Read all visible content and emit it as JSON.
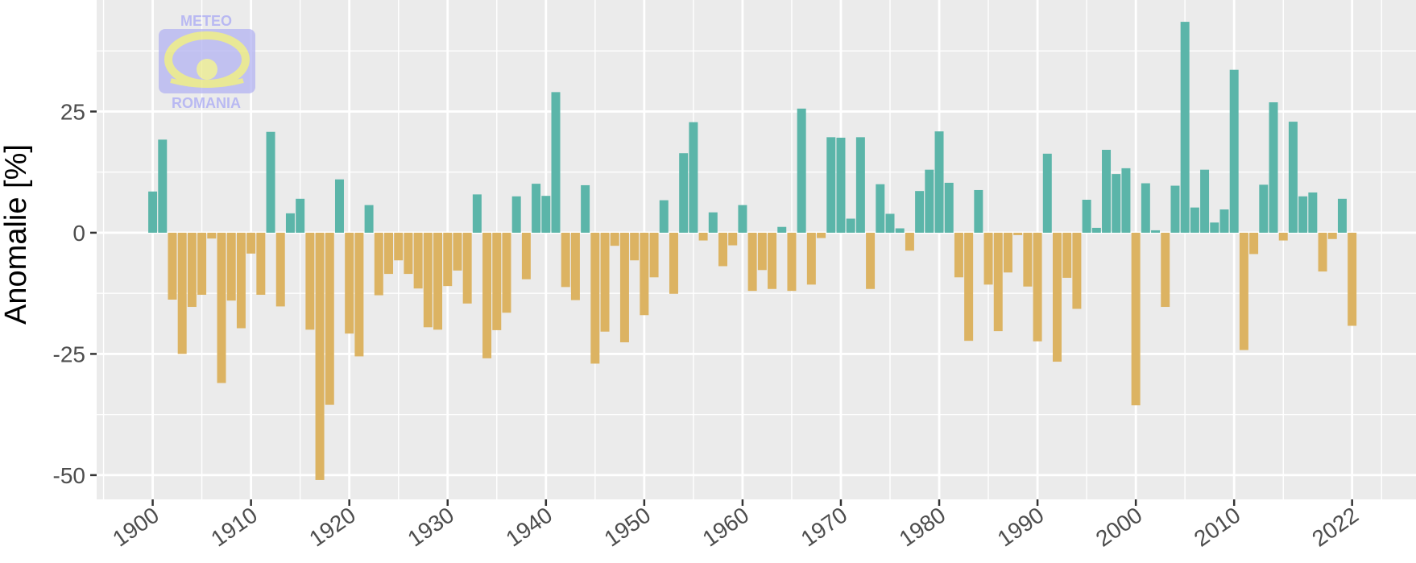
{
  "chart_data": {
    "type": "bar",
    "ylabel": "Anomalie [%]",
    "xlabel": "",
    "ylim": [
      -55,
      48
    ],
    "xlim": [
      1894.3,
      2028.5
    ],
    "x_ticks": [
      1900,
      1910,
      1920,
      1930,
      1940,
      1950,
      1960,
      1970,
      1980,
      1990,
      2000,
      2010,
      2022
    ],
    "x_tick_labels": [
      "1900",
      "1910",
      "1920",
      "1930",
      "1940",
      "1950",
      "1960",
      "1970",
      "1980",
      "1990",
      "2000",
      "2010",
      "2022"
    ],
    "y_ticks": [
      25,
      0,
      -25,
      -50
    ],
    "y_tick_labels": [
      "25",
      "0",
      "-25",
      "-50"
    ],
    "grid": true,
    "colors": {
      "positive": "#5bb5a9",
      "negative": "#dcb362",
      "panel": "#ebebeb",
      "grid": "#ffffff"
    },
    "x": [
      1900,
      1901,
      1902,
      1903,
      1904,
      1905,
      1906,
      1907,
      1908,
      1909,
      1910,
      1911,
      1912,
      1913,
      1914,
      1915,
      1916,
      1917,
      1918,
      1919,
      1920,
      1921,
      1922,
      1923,
      1924,
      1925,
      1926,
      1927,
      1928,
      1929,
      1930,
      1931,
      1932,
      1933,
      1934,
      1935,
      1936,
      1937,
      1938,
      1939,
      1940,
      1941,
      1942,
      1943,
      1944,
      1945,
      1946,
      1947,
      1948,
      1949,
      1950,
      1951,
      1952,
      1953,
      1954,
      1955,
      1956,
      1957,
      1958,
      1959,
      1960,
      1961,
      1962,
      1963,
      1964,
      1965,
      1966,
      1967,
      1968,
      1969,
      1970,
      1971,
      1972,
      1973,
      1974,
      1975,
      1976,
      1977,
      1978,
      1979,
      1980,
      1981,
      1982,
      1983,
      1984,
      1985,
      1986,
      1987,
      1988,
      1989,
      1990,
      1991,
      1992,
      1993,
      1994,
      1995,
      1996,
      1997,
      1998,
      1999,
      2000,
      2001,
      2002,
      2003,
      2004,
      2005,
      2006,
      2007,
      2008,
      2009,
      2010,
      2011,
      2012,
      2013,
      2014,
      2015,
      2016,
      2017,
      2018,
      2019,
      2020,
      2021,
      2022
    ],
    "values": [
      8.5,
      19.2,
      -13.8,
      -25,
      -15.3,
      -12.8,
      -1.2,
      -31,
      -14,
      -19.7,
      -4.3,
      -12.8,
      20.8,
      -15.2,
      4,
      7,
      -20,
      -51,
      -35.5,
      11,
      -20.8,
      -25.5,
      5.7,
      -12.9,
      -8.5,
      -5.7,
      -8.5,
      -11.5,
      -19.5,
      -20,
      -11,
      -7.8,
      -14.6,
      7.9,
      -25.9,
      -20.1,
      -16.5,
      7.5,
      -9.6,
      10.1,
      7.6,
      29,
      -11.2,
      -13.9,
      9.8,
      -27,
      -20.4,
      -2.7,
      -22.6,
      -5.7,
      -17,
      -9.2,
      6.7,
      -12.6,
      16.4,
      22.8,
      -1.6,
      4.2,
      -6.9,
      -2.6,
      5.7,
      -12,
      -7.7,
      -11.6,
      1.2,
      -12,
      25.6,
      -10.7,
      -1.1,
      19.7,
      19.6,
      2.9,
      19.7,
      -11.6,
      10,
      3.9,
      0.9,
      -3.7,
      8.6,
      13,
      20.9,
      10.3,
      -9.2,
      -22.3,
      8.8,
      -10.7,
      -20.3,
      -8.2,
      -0.5,
      -11.1,
      -22.4,
      16.3,
      -26.6,
      -9.3,
      -15.7,
      6.8,
      1,
      17.1,
      12.1,
      13.3,
      -35.6,
      10.2,
      0.5,
      -15.3,
      9.7,
      43.5,
      5.2,
      13,
      2.1,
      4.8,
      33.6,
      -24.2,
      -4.4,
      9.9,
      26.9,
      -1.6,
      22.9,
      7.5,
      8.3,
      -8,
      -1.3,
      7,
      -19.2
    ]
  },
  "logo": {
    "top_text": "METEO",
    "bottom_text": "ROMANIA"
  }
}
